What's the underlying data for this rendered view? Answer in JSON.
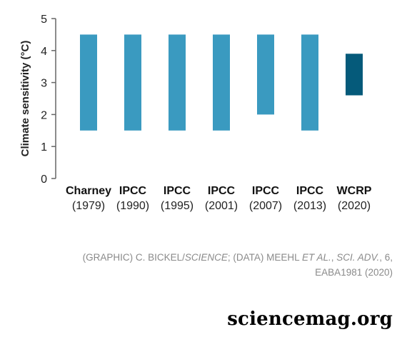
{
  "chart_data": {
    "type": "bar",
    "subtype": "floating-range",
    "ylabel": "Climate sensitivity (°C)",
    "ylim": [
      0,
      5
    ],
    "yticks": [
      "0",
      "1",
      "2",
      "3",
      "4",
      "5"
    ],
    "grid": false,
    "categories": [
      {
        "name": "Charney",
        "year": "(1979)"
      },
      {
        "name": "IPCC",
        "year": "(1990)"
      },
      {
        "name": "IPCC",
        "year": "(1995)"
      },
      {
        "name": "IPCC",
        "year": "(2001)"
      },
      {
        "name": "IPCC",
        "year": "(2007)"
      },
      {
        "name": "IPCC",
        "year": "(2013)"
      },
      {
        "name": "WCRP",
        "year": "(2020)"
      }
    ],
    "ranges": [
      [
        1.5,
        4.5
      ],
      [
        1.5,
        4.5
      ],
      [
        1.5,
        4.5
      ],
      [
        1.5,
        4.5
      ],
      [
        2.0,
        4.5
      ],
      [
        1.5,
        4.5
      ],
      [
        2.6,
        3.9
      ]
    ],
    "colors": {
      "bar": "#3a9ac0",
      "highlight": "#055a7a",
      "axis": "#666666"
    },
    "highlight_index": 6
  },
  "credit": {
    "graphic_prefix": "(GRAPHIC) C. BICKEL/",
    "graphic_pub": "SCIENCE",
    "data_prefix": "; (DATA) MEEHL ",
    "data_authors": "ET AL.",
    "data_sep": ", ",
    "data_journal": "SCI. ADV.",
    "data_rest": ", 6,",
    "line2": "EABA1981 (2020)"
  },
  "brand": "sciencemag.org"
}
